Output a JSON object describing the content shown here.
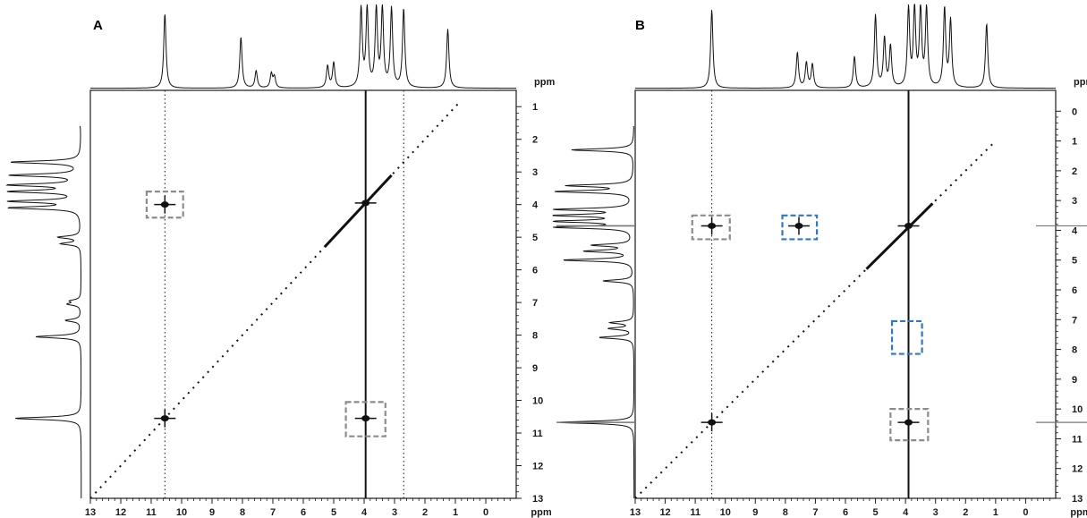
{
  "chart_data": [
    {
      "panel": "A",
      "type": "scatter",
      "subtype": "2D NMR correlation spectrum (COSY)",
      "x_axis": {
        "unit": "ppm",
        "range": [
          13,
          -1
        ],
        "reversed": true,
        "tick_labels": [
          "13",
          "12",
          "11",
          "10",
          "9",
          "8",
          "7",
          "6",
          "5",
          "4",
          "3",
          "2",
          "1",
          "0"
        ]
      },
      "y_axis": {
        "unit": "ppm",
        "range": [
          0.5,
          13
        ],
        "tick_labels": [
          "1",
          "2",
          "3",
          "4",
          "5",
          "6",
          "7",
          "8",
          "9",
          "10",
          "11",
          "12",
          "13"
        ],
        "tick_side": "right"
      },
      "grid": false,
      "projection_1d_peaks_ppm": [
        {
          "shift": 10.55,
          "intensity": 0.95
        },
        {
          "shift": 8.05,
          "intensity": 0.65
        },
        {
          "shift": 7.55,
          "intensity": 0.22
        },
        {
          "shift": 7.05,
          "intensity": 0.18
        },
        {
          "shift": 6.95,
          "intensity": 0.14
        },
        {
          "shift": 5.2,
          "intensity": 0.28
        },
        {
          "shift": 5.0,
          "intensity": 0.32
        },
        {
          "shift": 4.1,
          "intensity": 1.0
        },
        {
          "shift": 3.9,
          "intensity": 1.0
        },
        {
          "shift": 3.6,
          "intensity": 1.0
        },
        {
          "shift": 3.4,
          "intensity": 1.0
        },
        {
          "shift": 3.1,
          "intensity": 1.0
        },
        {
          "shift": 2.7,
          "intensity": 1.0
        },
        {
          "shift": 1.25,
          "intensity": 0.75
        }
      ],
      "vertical_traces_ppm": [
        {
          "x": 10.55,
          "style": "dotted"
        },
        {
          "x": 3.95,
          "style": "solid"
        },
        {
          "x": 2.7,
          "style": "dotted"
        }
      ],
      "diagonal": {
        "from": 13,
        "to": 0.9
      },
      "cross_peaks": [
        {
          "x": 10.55,
          "y": 4.0,
          "boxed": "gray"
        },
        {
          "x": 3.95,
          "y": 10.55,
          "boxed": "gray"
        },
        {
          "x": 10.55,
          "y": 10.55,
          "boxed": null
        },
        {
          "x": 3.95,
          "y": 3.95,
          "boxed": null
        }
      ],
      "boxes": [
        {
          "color": "gray",
          "x_range": [
            11.15,
            9.95
          ],
          "y_range": [
            3.6,
            4.4
          ]
        },
        {
          "color": "gray",
          "x_range": [
            4.6,
            3.3
          ],
          "y_range": [
            10.05,
            11.1
          ]
        }
      ]
    },
    {
      "panel": "B",
      "type": "scatter",
      "subtype": "2D NMR correlation spectrum (NOESY)",
      "x_axis": {
        "unit": "ppm",
        "range": [
          13,
          -1
        ],
        "reversed": true,
        "tick_labels": [
          "13",
          "12",
          "11",
          "10",
          "9",
          "8",
          "7",
          "6",
          "5",
          "4",
          "3",
          "2",
          "1",
          "0"
        ]
      },
      "y_axis": {
        "unit": "ppm",
        "range": [
          -0.7,
          13
        ],
        "tick_labels": [
          "0",
          "1",
          "2",
          "3",
          "4",
          "5",
          "6",
          "7",
          "8",
          "9",
          "10",
          "11",
          "12",
          "13"
        ],
        "tick_side": "right"
      },
      "grid": false,
      "projection_1d_peaks_ppm": [
        {
          "shift": 10.45,
          "intensity": 1.0
        },
        {
          "shift": 7.6,
          "intensity": 0.45
        },
        {
          "shift": 7.3,
          "intensity": 0.32
        },
        {
          "shift": 7.1,
          "intensity": 0.3
        },
        {
          "shift": 5.7,
          "intensity": 0.4
        },
        {
          "shift": 5.0,
          "intensity": 0.92
        },
        {
          "shift": 4.7,
          "intensity": 0.62
        },
        {
          "shift": 4.5,
          "intensity": 0.52
        },
        {
          "shift": 3.9,
          "intensity": 1.0
        },
        {
          "shift": 3.7,
          "intensity": 1.0
        },
        {
          "shift": 3.5,
          "intensity": 1.0
        },
        {
          "shift": 3.3,
          "intensity": 1.0
        },
        {
          "shift": 2.7,
          "intensity": 1.0
        },
        {
          "shift": 2.5,
          "intensity": 0.85
        },
        {
          "shift": 1.3,
          "intensity": 0.82
        }
      ],
      "horizontal_traces_ppm": [
        3.85,
        10.45
      ],
      "vertical_traces_ppm": [
        {
          "x": 3.9,
          "style": "solid"
        },
        {
          "x": 10.45,
          "style": "dotted"
        }
      ],
      "diagonal": {
        "from": 13,
        "to": 1.0
      },
      "cross_peaks": [
        {
          "x": 10.45,
          "y": 3.85,
          "boxed": "gray"
        },
        {
          "x": 3.9,
          "y": 10.45,
          "boxed": "gray"
        },
        {
          "x": 7.55,
          "y": 3.85,
          "boxed": "blue"
        },
        {
          "x": 10.45,
          "y": 10.45,
          "boxed": null
        },
        {
          "x": 3.9,
          "y": 3.85,
          "boxed": null
        }
      ],
      "boxes": [
        {
          "color": "gray",
          "x_range": [
            11.1,
            9.85
          ],
          "y_range": [
            3.5,
            4.3
          ]
        },
        {
          "color": "gray",
          "x_range": [
            4.5,
            3.25
          ],
          "y_range": [
            10.0,
            11.05
          ]
        },
        {
          "color": "blue",
          "x_range": [
            8.1,
            6.95
          ],
          "y_range": [
            3.5,
            4.3
          ]
        },
        {
          "color": "blue",
          "x_range": [
            4.45,
            3.45
          ],
          "y_range": [
            7.05,
            8.15
          ]
        }
      ]
    }
  ],
  "colors": {
    "axis": "#1a1a1a",
    "spectrum": "#111111",
    "box_gray": "#8c8c8c",
    "box_blue": "#2e78c7"
  }
}
